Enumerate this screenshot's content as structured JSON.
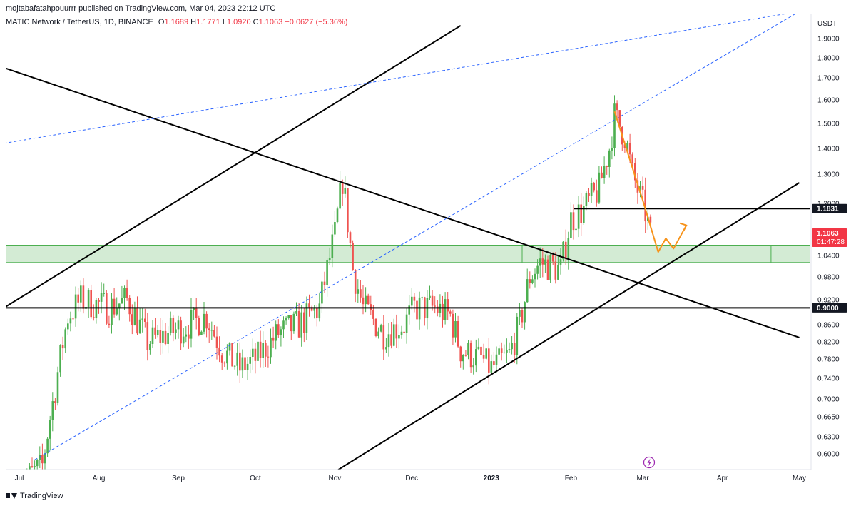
{
  "header": {
    "published_by": "mojtabafatahpouurrr published on TradingView.com, Mar 04, 2023 22:12 UTC",
    "symbol": "MATIC Network / TetherUS, 1D, BINANCE",
    "ohlc": {
      "o_label": "O",
      "o_value": "1.1689",
      "h_label": "H",
      "h_value": "1.1771",
      "l_label": "L",
      "l_value": "1.0920",
      "c_label": "C",
      "c_value": "1.1063",
      "change": "−0.0627 (−5.36%)"
    }
  },
  "footer": {
    "brand": "TradingView"
  },
  "colors": {
    "up": "#4caf50",
    "down": "#ef5350",
    "trend": "#000000",
    "channel": "#2962ff",
    "zone": "#c8e6c9",
    "projection": "#f7931a",
    "last_price": "#f23645",
    "flash": "#9c27b0"
  },
  "chart_data": {
    "type": "candlestick",
    "currency_label": "USDT",
    "y_ticks": [
      "1.9000",
      "1.8000",
      "1.7000",
      "1.6000",
      "1.5000",
      "1.4000",
      "1.3000",
      "1.2000",
      "1.0400",
      "0.9800",
      "0.9200",
      "0.8600",
      "0.8200",
      "0.7800",
      "0.7400",
      "0.7000",
      "0.6650",
      "0.6300",
      "0.6000"
    ],
    "x_ticks": [
      "Jul",
      "Aug",
      "Sep",
      "Oct",
      "Nov",
      "Dec",
      "2023",
      "Feb",
      "Mar",
      "Apr",
      "May"
    ],
    "price_labels": {
      "level_high": "1.1831",
      "last_price": "1.1063",
      "countdown": "01:47:28",
      "level_low": "0.9000"
    },
    "support_zone": [
      1.02,
      1.07
    ],
    "candles_knots": [
      [
        "2022-07-01",
        0.55
      ],
      [
        "2022-07-10",
        0.58
      ],
      [
        "2022-07-15",
        0.72
      ],
      [
        "2022-07-20",
        0.88
      ],
      [
        "2022-07-25",
        0.92
      ],
      [
        "2022-08-05",
        0.9
      ],
      [
        "2022-08-12",
        0.92
      ],
      [
        "2022-08-20",
        0.82
      ],
      [
        "2022-08-28",
        0.84
      ],
      [
        "2022-09-05",
        0.86
      ],
      [
        "2022-09-12",
        0.88
      ],
      [
        "2022-09-18",
        0.8
      ],
      [
        "2022-09-25",
        0.76
      ],
      [
        "2022-10-01",
        0.78
      ],
      [
        "2022-10-10",
        0.84
      ],
      [
        "2022-10-18",
        0.86
      ],
      [
        "2022-10-26",
        0.9
      ],
      [
        "2022-11-01",
        1.1
      ],
      [
        "2022-11-04",
        1.28
      ],
      [
        "2022-11-08",
        1.0
      ],
      [
        "2022-11-12",
        0.9
      ],
      [
        "2022-11-20",
        0.84
      ],
      [
        "2022-11-28",
        0.86
      ],
      [
        "2022-12-02",
        0.9
      ],
      [
        "2022-12-10",
        0.9
      ],
      [
        "2022-12-16",
        0.88
      ],
      [
        "2022-12-20",
        0.8
      ],
      [
        "2022-12-28",
        0.78
      ],
      [
        "2023-01-01",
        0.76
      ],
      [
        "2023-01-08",
        0.79
      ],
      [
        "2023-01-12",
        0.86
      ],
      [
        "2023-01-16",
        0.98
      ],
      [
        "2023-01-20",
        1.02
      ],
      [
        "2023-01-28",
        1.0
      ],
      [
        "2023-02-01",
        1.15
      ],
      [
        "2023-02-06",
        1.18
      ],
      [
        "2023-02-12",
        1.25
      ],
      [
        "2023-02-16",
        1.4
      ],
      [
        "2023-02-18",
        1.53
      ],
      [
        "2023-02-22",
        1.45
      ],
      [
        "2023-02-25",
        1.3
      ],
      [
        "2023-02-28",
        1.22
      ],
      [
        "2023-03-02",
        1.17
      ],
      [
        "2023-03-04",
        1.1
      ]
    ],
    "drawings": {
      "horizontal_levels": [
        1.1831,
        0.9
      ],
      "trendlines": [
        {
          "name": "descending-resistance",
          "from": [
            "2022-06-25",
            1.75
          ],
          "to": [
            "2023-05-01",
            0.83
          ]
        },
        {
          "name": "ascending-upper",
          "from": [
            "2022-06-25",
            0.9
          ],
          "to": [
            "2022-12-20",
            1.97
          ]
        },
        {
          "name": "ascending-support",
          "from": [
            "2022-11-01",
            0.57
          ],
          "to": [
            "2023-05-01",
            1.27
          ]
        }
      ],
      "channel_dashed": [
        {
          "from": [
            "2022-06-25",
            1.42
          ],
          "to": [
            "2023-05-01",
            2.05
          ]
        },
        {
          "from": [
            "2022-07-07",
            0.59
          ],
          "to": [
            "2023-05-01",
            2.05
          ],
          "via": "parallel"
        }
      ],
      "projection_path": [
        [
          "2023-02-18",
          1.55
        ],
        [
          "2023-03-01",
          1.21
        ],
        [
          "2023-03-07",
          1.05
        ],
        [
          "2023-03-10",
          1.09
        ],
        [
          "2023-03-13",
          1.06
        ],
        [
          "2023-03-18",
          1.13
        ]
      ]
    }
  }
}
